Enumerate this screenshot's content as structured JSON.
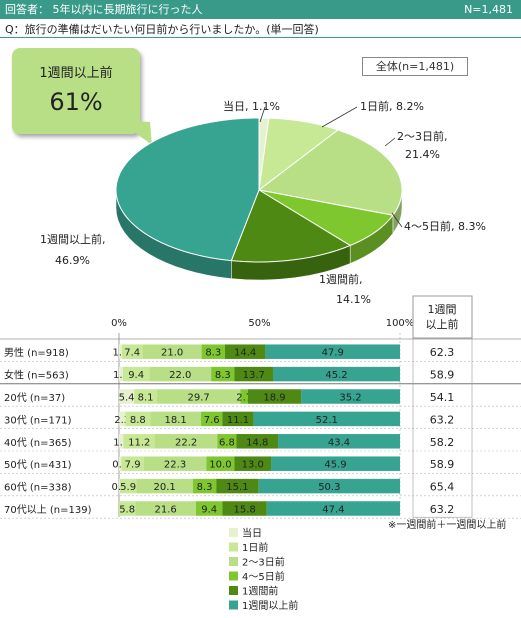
{
  "header": {
    "respondents": "回答者： 5年以内に長期旅行に行った人",
    "n_total": "N=1,481"
  },
  "question": "Q：旅行の準備はだいたい何日前から行いましたか。(単一回答)",
  "callout": {
    "label": "1週間以上前",
    "value": "61%"
  },
  "total_label": "全体(n=1,481)",
  "pie_labels": [
    [
      "当日, 1.1%"
    ],
    [
      "1日前, 8.2%"
    ],
    [
      "2～3日前,",
      "21.4%"
    ],
    [
      "4～5日前, 8.3%"
    ],
    [
      "1週間前,",
      "14.1%"
    ],
    [
      "1週間以上前,",
      "46.9%"
    ]
  ],
  "right_header": [
    "1週間",
    "以上前"
  ],
  "note": "※一週間前＋一週間以上前",
  "colors": [
    "#e6f1cf",
    "#c7e895",
    "#b8df86",
    "#7ec72e",
    "#4e8a13",
    "#36a491"
  ],
  "chart_data": [
    {
      "type": "pie",
      "title": "全体(n=1,481)",
      "categories": [
        "当日",
        "1日前",
        "2～3日前",
        "4～5日前",
        "1週間前",
        "1週間以上前"
      ],
      "values": [
        1.1,
        8.2,
        21.4,
        8.3,
        14.1,
        46.9
      ],
      "legend": "bottom"
    },
    {
      "type": "bar",
      "orientation": "horizontal",
      "stacked": true,
      "categories": [
        "男性 (n=918)",
        "女性 (n=563)",
        "20代 (n=37)",
        "30代 (n=171)",
        "40代 (n=365)",
        "50代 (n=431)",
        "60代 (n=338)",
        "70代以上 (n=139)"
      ],
      "xticks": [
        "0%",
        "50%",
        "100%"
      ],
      "xlim": [
        0,
        100
      ],
      "series": [
        {
          "name": "当日",
          "labels": [
            "1.0",
            "1.4",
            "5.4",
            "2.3",
            "1.6",
            "0.9",
            "0.3",
            ""
          ],
          "values": [
            1.0,
            1.4,
            5.4,
            2.3,
            1.6,
            0.9,
            0.3,
            0.0
          ]
        },
        {
          "name": "1日前",
          "labels": [
            "7.4",
            "9.4",
            "8.1",
            "8.8",
            "11.2",
            "7.9",
            "5.9",
            "5.8"
          ],
          "values": [
            7.4,
            9.4,
            8.1,
            8.8,
            11.2,
            7.9,
            5.9,
            5.8
          ]
        },
        {
          "name": "2～3日前",
          "labels": [
            "21.0",
            "22.0",
            "29.7",
            "18.1",
            "22.2",
            "22.3",
            "20.1",
            "21.6"
          ],
          "values": [
            21.0,
            22.0,
            29.7,
            18.1,
            22.2,
            22.3,
            20.1,
            21.6
          ]
        },
        {
          "name": "4～5日前",
          "labels": [
            "8.3",
            "8.3",
            "2.7",
            "7.6",
            "6.8",
            "10.0",
            "8.3",
            "9.4"
          ],
          "values": [
            8.3,
            8.3,
            2.7,
            7.6,
            6.8,
            10.0,
            8.3,
            9.4
          ]
        },
        {
          "name": "1週間前",
          "labels": [
            "14.4",
            "13.7",
            "18.9",
            "11.1",
            "14.8",
            "13.0",
            "15.1",
            "15.8"
          ],
          "values": [
            14.4,
            13.7,
            18.9,
            11.1,
            14.8,
            13.0,
            15.1,
            15.8
          ]
        },
        {
          "name": "1週間以上前",
          "labels": [
            "47.9",
            "45.2",
            "35.2",
            "52.1",
            "43.4",
            "45.9",
            "50.3",
            "47.4"
          ],
          "values": [
            47.9,
            45.2,
            35.2,
            52.1,
            43.4,
            45.9,
            50.3,
            47.4
          ]
        }
      ],
      "right_column_values": [
        "62.3",
        "58.9",
        "54.1",
        "63.2",
        "58.2",
        "58.9",
        "65.4",
        "63.2"
      ],
      "legend": "bottom"
    }
  ]
}
